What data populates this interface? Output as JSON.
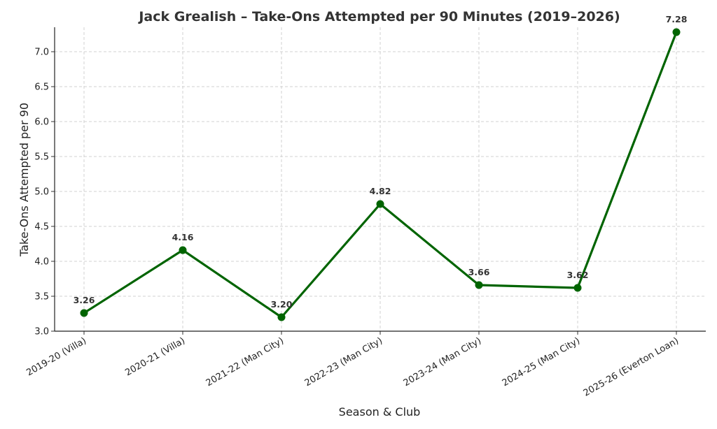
{
  "chart_data": {
    "type": "line",
    "title": "Jack Grealish – Take-Ons Attempted per 90 Minutes (2019–2026)",
    "xlabel": "Season & Club",
    "ylabel": "Take-Ons Attempted per 90",
    "categories": [
      "2019-20 (Villa)",
      "2020-21 (Villa)",
      "2021-22 (Man City)",
      "2022-23 (Man City)",
      "2023-24 (Man City)",
      "2024-25 (Man City)",
      "2025-26 (Everton Loan)"
    ],
    "values": [
      3.26,
      4.16,
      3.2,
      4.82,
      3.66,
      3.62,
      7.28
    ],
    "data_labels": [
      "3.26",
      "4.16",
      "3.20",
      "4.82",
      "3.66",
      "3.62",
      "7.28"
    ],
    "ylim": [
      3.0,
      7.35
    ],
    "yticks": [
      "3.0",
      "3.5",
      "4.0",
      "4.5",
      "5.0",
      "5.5",
      "6.0",
      "6.5",
      "7.0"
    ],
    "grid": true,
    "line_color": "#006400"
  }
}
